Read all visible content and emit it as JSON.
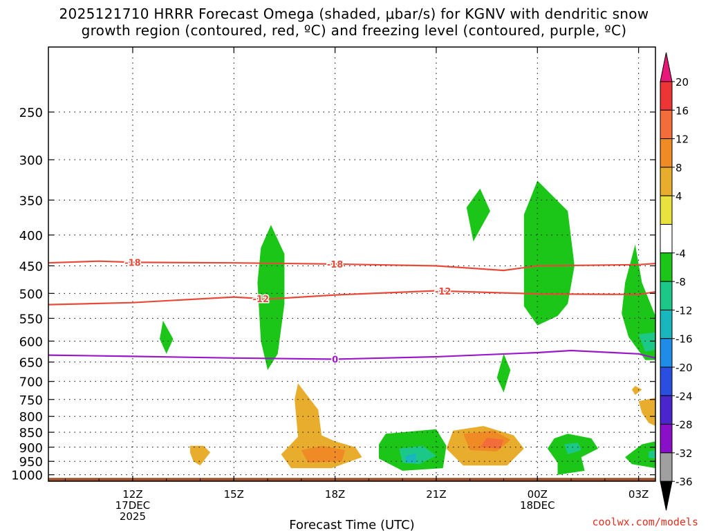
{
  "title_line1": "2025121710 HRRR Forecast Omega (shaded, μbar/s) for KGNV with dendritic snow",
  "title_line2": "growth region (contoured, red, ºC) and freezing level (contoured, purple, ºC)",
  "credit": "coolwx.com/models",
  "chart_data": {
    "type": "heatmap",
    "xlabel": "Forecast Time (UTC)",
    "x_range_hours": [
      9.5,
      27.5
    ],
    "y_scale": "log",
    "y_range_hPa": [
      1025,
      195
    ],
    "x_ticks": [
      {
        "hour": 12,
        "lines": [
          "12Z",
          "17DEC",
          "2025"
        ]
      },
      {
        "hour": 15,
        "lines": [
          "15Z"
        ]
      },
      {
        "hour": 18,
        "lines": [
          "18Z"
        ]
      },
      {
        "hour": 21,
        "lines": [
          "21Z"
        ]
      },
      {
        "hour": 24,
        "lines": [
          "00Z",
          "18DEC"
        ]
      },
      {
        "hour": 27,
        "lines": [
          "03Z"
        ]
      }
    ],
    "y_ticks": [
      250,
      300,
      350,
      400,
      450,
      500,
      550,
      600,
      650,
      700,
      750,
      800,
      850,
      900,
      950,
      1000
    ],
    "grid": true,
    "colorbar": {
      "labels": [
        "20",
        "16",
        "12",
        "8",
        "4",
        "-4",
        "-8",
        "-12",
        "-16",
        "-20",
        "-24",
        "-28",
        "-32",
        "-36"
      ],
      "bins": [
        {
          "color": "#e8187a",
          "kind": "top-arrow"
        },
        {
          "color": "#ee3536"
        },
        {
          "color": "#f26d3a"
        },
        {
          "color": "#f08a24"
        },
        {
          "color": "#e9ad2e"
        },
        {
          "color": "#e8e13e"
        },
        {
          "color": "#ffffff"
        },
        {
          "color": "#1cc619"
        },
        {
          "color": "#1bc888"
        },
        {
          "color": "#18b7be"
        },
        {
          "color": "#1f8ce8"
        },
        {
          "color": "#2a4fe0"
        },
        {
          "color": "#4a24cc"
        },
        {
          "color": "#8a0fc8"
        },
        {
          "color": "#a0a0a0"
        },
        {
          "color": "#000000",
          "kind": "bottom-arrow"
        }
      ]
    },
    "contours": [
      {
        "name": "-18",
        "color": "#e84a3a",
        "label_hours": [
          12,
          18
        ],
        "points": [
          [
            9.5,
            445
          ],
          [
            11,
            442
          ],
          [
            12,
            444
          ],
          [
            15,
            445
          ],
          [
            18,
            447
          ],
          [
            21,
            450
          ],
          [
            23,
            458
          ],
          [
            24,
            450
          ],
          [
            27,
            448
          ],
          [
            27.5,
            446
          ]
        ]
      },
      {
        "name": "-12",
        "color": "#e84a3a",
        "label_hours": [
          15.8,
          21.2
        ],
        "points": [
          [
            9.5,
            522
          ],
          [
            12,
            518
          ],
          [
            15,
            507
          ],
          [
            16,
            511
          ],
          [
            18,
            503
          ],
          [
            21,
            495
          ],
          [
            22,
            497
          ],
          [
            24,
            501
          ],
          [
            27,
            502
          ],
          [
            27.5,
            497
          ]
        ]
      },
      {
        "name": "0",
        "color": "#9a18c8",
        "label_hours": [
          18
        ],
        "points": [
          [
            9.5,
            633
          ],
          [
            12,
            636
          ],
          [
            15,
            640
          ],
          [
            18,
            643
          ],
          [
            21,
            637
          ],
          [
            24,
            627
          ],
          [
            25,
            622
          ],
          [
            27,
            630
          ],
          [
            27.5,
            640
          ]
        ]
      }
    ],
    "shaded_regions": [
      {
        "value": -6,
        "points": [
          [
            12.9,
            555
          ],
          [
            13.2,
            595
          ],
          [
            13.0,
            630
          ],
          [
            12.8,
            595
          ]
        ]
      },
      {
        "value": 6,
        "points": [
          [
            13.7,
            895
          ],
          [
            14.1,
            895
          ],
          [
            14.3,
            918
          ],
          [
            14.0,
            965
          ],
          [
            13.8,
            950
          ],
          [
            13.7,
            918
          ]
        ]
      },
      {
        "value": -6,
        "points": [
          [
            16.1,
            385
          ],
          [
            16.5,
            430
          ],
          [
            16.5,
            520
          ],
          [
            16.3,
            630
          ],
          [
            16.0,
            670
          ],
          [
            15.8,
            600
          ],
          [
            15.7,
            480
          ],
          [
            15.8,
            420
          ]
        ]
      },
      {
        "value": 6,
        "points": [
          [
            16.9,
            705
          ],
          [
            17.5,
            780
          ],
          [
            17.6,
            860
          ],
          [
            18.0,
            880
          ],
          [
            18.6,
            900
          ],
          [
            18.8,
            935
          ],
          [
            17.9,
            975
          ],
          [
            16.7,
            975
          ],
          [
            16.4,
            925
          ],
          [
            16.9,
            865
          ],
          [
            16.8,
            750
          ]
        ]
      },
      {
        "value": 10,
        "points": [
          [
            17.0,
            910
          ],
          [
            17.6,
            895
          ],
          [
            18.3,
            910
          ],
          [
            18.2,
            950
          ],
          [
            17.2,
            955
          ]
        ]
      },
      {
        "value": -6,
        "points": [
          [
            22.3,
            335
          ],
          [
            22.6,
            365
          ],
          [
            22.1,
            410
          ],
          [
            21.9,
            360
          ]
        ]
      },
      {
        "value": -6,
        "points": [
          [
            24.0,
            325
          ],
          [
            24.9,
            365
          ],
          [
            25.1,
            450
          ],
          [
            24.9,
            520
          ],
          [
            24.6,
            545
          ],
          [
            24.0,
            565
          ],
          [
            23.6,
            525
          ],
          [
            23.6,
            370
          ]
        ]
      },
      {
        "value": -6,
        "points": [
          [
            23.0,
            630
          ],
          [
            23.2,
            670
          ],
          [
            23.0,
            730
          ],
          [
            22.8,
            690
          ]
        ]
      },
      {
        "value": 6,
        "points": [
          [
            21.5,
            845
          ],
          [
            22.4,
            830
          ],
          [
            23.3,
            860
          ],
          [
            23.6,
            905
          ],
          [
            23.1,
            965
          ],
          [
            21.8,
            965
          ],
          [
            21.3,
            905
          ]
        ]
      },
      {
        "value": 10,
        "points": [
          [
            21.8,
            855
          ],
          [
            22.7,
            845
          ],
          [
            23.2,
            875
          ],
          [
            22.8,
            915
          ],
          [
            22.0,
            910
          ]
        ]
      },
      {
        "value": 14,
        "points": [
          [
            22.5,
            868
          ],
          [
            23.0,
            875
          ],
          [
            22.9,
            905
          ],
          [
            22.3,
            900
          ]
        ]
      },
      {
        "value": -6,
        "points": [
          [
            19.5,
            855
          ],
          [
            21.0,
            840
          ],
          [
            21.3,
            895
          ],
          [
            21.2,
            975
          ],
          [
            20.0,
            985
          ],
          [
            19.3,
            940
          ],
          [
            19.3,
            890
          ]
        ]
      },
      {
        "value": -10,
        "points": [
          [
            19.9,
            905
          ],
          [
            20.6,
            895
          ],
          [
            21.0,
            930
          ],
          [
            20.5,
            960
          ],
          [
            20.0,
            955
          ]
        ]
      },
      {
        "value": -14,
        "points": [
          [
            20.1,
            930
          ],
          [
            20.4,
            920
          ],
          [
            20.4,
            955
          ],
          [
            20.1,
            955
          ]
        ]
      },
      {
        "value": -6,
        "points": [
          [
            24.9,
            855
          ],
          [
            25.6,
            870
          ],
          [
            25.8,
            905
          ],
          [
            25.3,
            935
          ],
          [
            25.4,
            985
          ],
          [
            24.6,
            1000
          ],
          [
            24.6,
            955
          ],
          [
            24.3,
            905
          ],
          [
            24.5,
            870
          ]
        ]
      },
      {
        "value": -10,
        "points": [
          [
            24.8,
            890
          ],
          [
            25.2,
            885
          ],
          [
            25.3,
            910
          ],
          [
            24.9,
            925
          ]
        ]
      },
      {
        "value": -6,
        "points": [
          [
            26.9,
            415
          ],
          [
            27.1,
            480
          ],
          [
            27.5,
            545
          ],
          [
            27.5,
            645
          ],
          [
            27.2,
            645
          ],
          [
            26.7,
            590
          ],
          [
            26.5,
            540
          ],
          [
            26.6,
            480
          ]
        ]
      },
      {
        "value": -10,
        "points": [
          [
            27.0,
            585
          ],
          [
            27.5,
            580
          ],
          [
            27.5,
            620
          ],
          [
            27.2,
            625
          ]
        ]
      },
      {
        "value": 6,
        "points": [
          [
            26.9,
            712
          ],
          [
            27.1,
            722
          ],
          [
            26.9,
            737
          ],
          [
            26.8,
            722
          ]
        ]
      },
      {
        "value": 6,
        "points": [
          [
            27.0,
            755
          ],
          [
            27.5,
            745
          ],
          [
            27.5,
            830
          ],
          [
            27.3,
            820
          ],
          [
            27.1,
            790
          ]
        ]
      },
      {
        "value": -6,
        "points": [
          [
            27.1,
            890
          ],
          [
            27.5,
            880
          ],
          [
            27.5,
            975
          ],
          [
            26.8,
            960
          ],
          [
            26.6,
            935
          ]
        ]
      },
      {
        "value": -10,
        "points": [
          [
            27.3,
            915
          ],
          [
            27.5,
            910
          ],
          [
            27.5,
            940
          ],
          [
            27.3,
            938
          ]
        ]
      }
    ],
    "ground": {
      "color": "#a0522d",
      "pressure_hPa": 1012
    }
  }
}
